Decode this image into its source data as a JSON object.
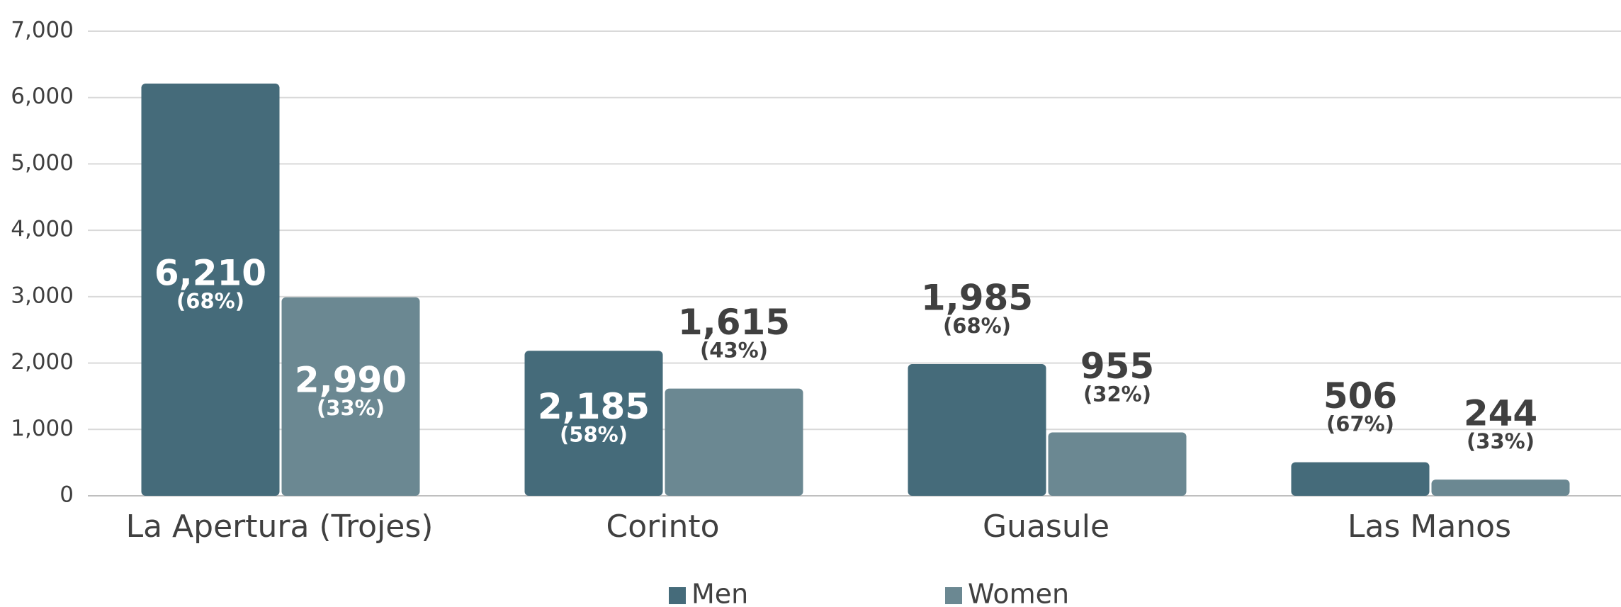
{
  "chart_data": {
    "type": "bar",
    "categories": [
      "La Apertura (Trojes)",
      "Corinto",
      "Guasule",
      "Las Manos"
    ],
    "series": [
      {
        "name": "Men",
        "color": "#456b7a",
        "values": [
          6210,
          2185,
          1985,
          506
        ],
        "value_labels": [
          "6,210",
          "2,185",
          "1,985",
          "506"
        ],
        "share_labels": [
          "(68%)",
          "(58%)",
          "(68%)",
          "(67%)"
        ]
      },
      {
        "name": "Women",
        "color": "#6b8892",
        "values": [
          2990,
          1615,
          955,
          244
        ],
        "value_labels": [
          "2,990",
          "1,615",
          "955",
          "244"
        ],
        "share_labels": [
          "(33%)",
          "(43%)",
          "(32%)",
          "(33%)"
        ]
      }
    ],
    "ylim": [
      0,
      7000
    ],
    "yticks": [
      0,
      {
        "value": 1000,
        "label": "1,000"
      },
      {
        "value": 2000,
        "label": "2,000"
      },
      {
        "value": 3000,
        "label": "3,000"
      },
      {
        "value": 4000,
        "label": "4,000"
      },
      {
        "value": 5000,
        "label": "5,000"
      },
      {
        "value": 6000,
        "label": "6,000"
      },
      {
        "value": 7000,
        "label": "7,000"
      }
    ],
    "grid": true,
    "legend": "bottom"
  }
}
